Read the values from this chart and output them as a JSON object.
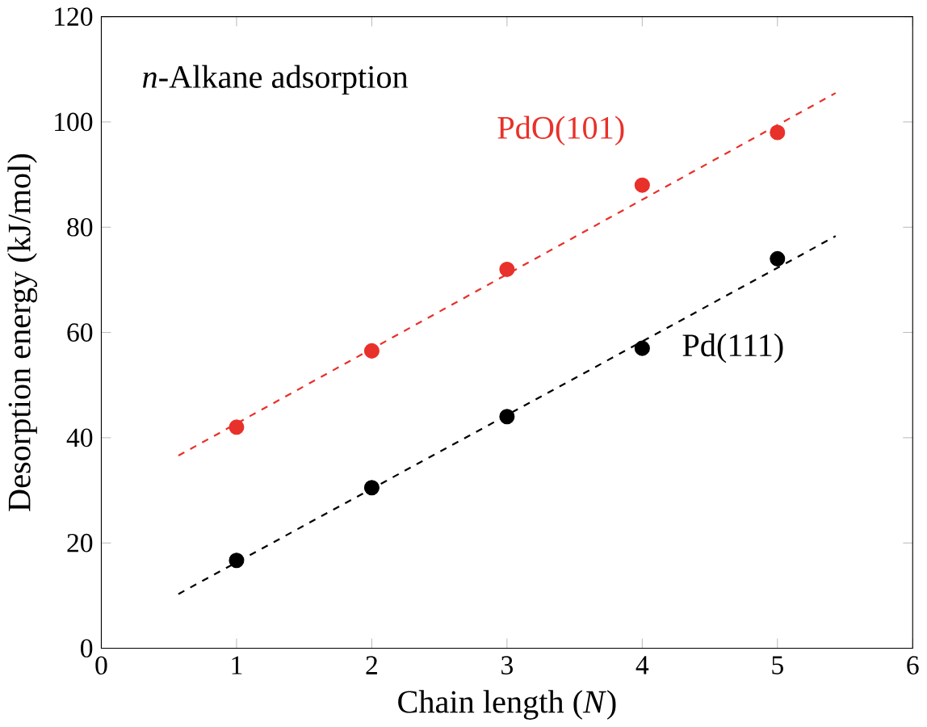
{
  "chart_data": {
    "type": "scatter",
    "xlabel": "Chain length (*N*)",
    "ylabel": "Desorption energy (kJ/mol)",
    "annotations": [
      "*n*-Alkane adsorption"
    ],
    "xlim": [
      0,
      6
    ],
    "ylim": [
      0,
      120
    ],
    "xticks": [
      0,
      1,
      2,
      3,
      4,
      5,
      6
    ],
    "yticks": [
      0,
      20,
      40,
      60,
      80,
      100,
      120
    ],
    "legend": false,
    "grid": false,
    "series": [
      {
        "name": "PdO(101)",
        "color": "#e8312a",
        "marker": "circle",
        "x": [
          1,
          2,
          3,
          4,
          5
        ],
        "values": [
          42,
          56.5,
          72,
          88,
          98
        ]
      },
      {
        "name": "Pd(111)",
        "color": "#000000",
        "marker": "circle",
        "x": [
          1,
          2,
          3,
          4,
          5
        ],
        "values": [
          16.7,
          30.5,
          44,
          57,
          74
        ]
      },
      {
        "color": "#e8312a",
        "type": "line",
        "line_style": "dashed",
        "marker": "none",
        "x": [
          0.57,
          5.43
        ],
        "values": [
          36.6,
          105.5
        ]
      },
      {
        "color": "#000000",
        "type": "line",
        "line_style": "dashed",
        "marker": "none",
        "x": [
          0.57,
          5.43
        ],
        "values": [
          10.3,
          78.3
        ]
      }
    ]
  }
}
